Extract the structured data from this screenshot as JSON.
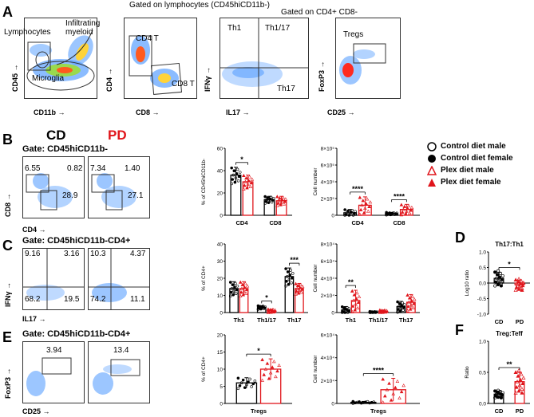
{
  "panels": {
    "A": {
      "label": "A",
      "plot1": {
        "xlabel": "CD11b",
        "ylabel": "CD45",
        "gate_lymph": "Lymphocytes",
        "gate_infil": "Infiltrating myeloid",
        "gate_micro": "Microglia"
      },
      "header2": "Gated on lymphocytes (CD45hiCD11b-)",
      "plot2": {
        "xlabel": "CD8",
        "ylabel": "CD4",
        "gate_cd4": "CD4 T",
        "gate_cd8": "CD8 T"
      },
      "header3": "Gated on CD4+ CD8-",
      "plot3": {
        "xlabel": "IL17",
        "ylabel": "IFNγ",
        "q_th1": "Th1",
        "q_th117": "Th1/17",
        "q_th17": "Th17"
      },
      "plot4": {
        "xlabel": "CD25",
        "ylabel": "FoxP3",
        "gate_treg": "Tregs"
      }
    },
    "B": {
      "label": "B",
      "col_cd": "CD",
      "col_pd": "PD",
      "gate": "Gate: CD45hiCD11b-",
      "xlabel": "CD4",
      "ylabel": "CD8",
      "cd_quads": [
        "6.55",
        "0.82",
        "28.9"
      ],
      "pd_quads": [
        "7.34",
        "1.40",
        "27.1"
      ]
    },
    "C": {
      "label": "C",
      "gate": "Gate: CD45hiCD11b-CD4+",
      "xlabel": "IL17",
      "ylabel": "IFNγ",
      "cd_quads": [
        "9.16",
        "3.16",
        "68.2",
        "19.5"
      ],
      "pd_quads": [
        "10.3",
        "4.37",
        "74.2",
        "11.1"
      ]
    },
    "D": {
      "label": "D"
    },
    "E": {
      "label": "E",
      "gate": "Gate: CD45hiCD11b-CD4+",
      "xlabel": "CD25",
      "ylabel": "FoxP3",
      "cd_value": "3.94",
      "pd_value": "13.4"
    },
    "F": {
      "label": "F"
    }
  },
  "legend": {
    "items": [
      {
        "label": "Control diet male",
        "marker": "open-circle",
        "color": "#000000"
      },
      {
        "label": "Control diet female",
        "marker": "filled-circle",
        "color": "#000000"
      },
      {
        "label": "Plex diet male",
        "marker": "open-triangle",
        "color": "#e0151b"
      },
      {
        "label": "Plex diet female",
        "marker": "filled-triangle",
        "color": "#e0151b"
      }
    ]
  },
  "colors": {
    "cd": "#000000",
    "pd": "#e0151b"
  },
  "chart_data": [
    {
      "id": "B_pct",
      "type": "bar",
      "ylabel": "% of CD45hiCD11b-",
      "ylim": [
        0,
        60
      ],
      "yticks": [
        "0",
        "20",
        "40",
        "60"
      ],
      "categories": [
        "CD4",
        "CD8"
      ],
      "series": [
        {
          "name": "CD",
          "values": [
            36,
            14
          ],
          "err": [
            7,
            3
          ]
        },
        {
          "name": "PD",
          "values": [
            30,
            13
          ],
          "err": [
            6,
            4
          ]
        }
      ],
      "sig": [
        {
          "category": "CD4",
          "text": "*"
        }
      ]
    },
    {
      "id": "B_num",
      "type": "bar",
      "ylabel": "Cell number",
      "ylim": [
        0,
        800000
      ],
      "yticks": [
        "0",
        "2×10⁵",
        "4×10⁵",
        "6×10⁵",
        "8×10⁵"
      ],
      "categories": [
        "CD4",
        "CD8"
      ],
      "series": [
        {
          "name": "CD",
          "values": [
            30000,
            20000
          ],
          "err": [
            40000,
            15000
          ]
        },
        {
          "name": "PD",
          "values": [
            120000,
            70000
          ],
          "err": [
            100000,
            60000
          ]
        }
      ],
      "sig": [
        {
          "category": "CD4",
          "text": "****"
        },
        {
          "category": "CD8",
          "text": "****"
        }
      ]
    },
    {
      "id": "C_pct",
      "type": "bar",
      "ylabel": "% of CD4+",
      "ylim": [
        0,
        40
      ],
      "yticks": [
        "0",
        "10",
        "20",
        "30",
        "40"
      ],
      "categories": [
        "Th1",
        "Th1/17",
        "Th17"
      ],
      "series": [
        {
          "name": "CD",
          "values": [
            14,
            3,
            21
          ],
          "err": [
            4,
            1,
            5
          ]
        },
        {
          "name": "PD",
          "values": [
            14,
            1,
            14
          ],
          "err": [
            4,
            1,
            3
          ]
        }
      ],
      "sig": [
        {
          "category": "Th1/17",
          "text": "*"
        },
        {
          "category": "Th17",
          "text": "***"
        }
      ]
    },
    {
      "id": "C_num",
      "type": "bar",
      "ylabel": "Cell number",
      "ylim": [
        0,
        80000
      ],
      "yticks": [
        "0",
        "2×10⁴",
        "4×10⁴",
        "6×10⁴",
        "8×10⁴"
      ],
      "categories": [
        "Th1",
        "Th1/17",
        "Th17"
      ],
      "series": [
        {
          "name": "CD",
          "values": [
            3000,
            500,
            7000
          ],
          "err": [
            4000,
            800,
            6000
          ]
        },
        {
          "name": "PD",
          "values": [
            14000,
            1500,
            12000
          ],
          "err": [
            12000,
            1500,
            9000
          ]
        }
      ],
      "sig": [
        {
          "category": "Th1",
          "text": "**"
        }
      ]
    },
    {
      "id": "D",
      "type": "bar",
      "title": "Th17:Th1",
      "ylabel": "Log10 ratio",
      "ylim": [
        -1.0,
        1.0
      ],
      "yticks": [
        "-1.0",
        "-0.5",
        "0.0",
        "0.5",
        "1.0"
      ],
      "categories": [
        "CD",
        "PD"
      ],
      "series": [
        {
          "name": "ratio",
          "values": [
            0.15,
            -0.05
          ],
          "err": [
            0.2,
            0.15
          ]
        }
      ],
      "sig": [
        {
          "category": "both",
          "text": "*"
        }
      ]
    },
    {
      "id": "E_pct",
      "type": "bar",
      "ylabel": "% of CD4+",
      "ylim": [
        0,
        20
      ],
      "yticks": [
        "0",
        "5",
        "10",
        "15",
        "20"
      ],
      "categories": [
        "Tregs"
      ],
      "series": [
        {
          "name": "CD",
          "values": [
            6
          ],
          "err": [
            1.5
          ]
        },
        {
          "name": "PD",
          "values": [
            10
          ],
          "err": [
            3
          ]
        }
      ],
      "sig": [
        {
          "category": "Tregs",
          "text": "*"
        }
      ]
    },
    {
      "id": "E_num",
      "type": "bar",
      "ylabel": "Cell number",
      "ylim": [
        0,
        60000
      ],
      "yticks": [
        "0",
        "2×10⁴",
        "4×10⁴",
        "6×10⁴"
      ],
      "categories": [
        "Tregs"
      ],
      "series": [
        {
          "name": "CD",
          "values": [
            1000
          ],
          "err": [
            800
          ]
        },
        {
          "name": "PD",
          "values": [
            12000
          ],
          "err": [
            10000
          ]
        }
      ],
      "sig": [
        {
          "category": "Tregs",
          "text": "****"
        }
      ]
    },
    {
      "id": "F",
      "type": "bar",
      "title": "Treg:Teff",
      "ylabel": "Ratio",
      "ylim": [
        0,
        1.0
      ],
      "yticks": [
        "0.0",
        "0.5",
        "1.0"
      ],
      "categories": [
        "CD",
        "PD"
      ],
      "series": [
        {
          "name": "ratio",
          "values": [
            0.15,
            0.35
          ],
          "err": [
            0.05,
            0.15
          ]
        }
      ],
      "sig": [
        {
          "category": "both",
          "text": "**"
        }
      ]
    }
  ]
}
